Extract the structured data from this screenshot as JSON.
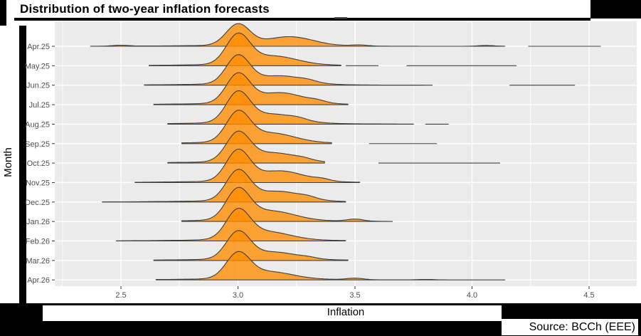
{
  "header": {
    "title": "Distribution of two-year inflation forecasts"
  },
  "footer": {
    "xlabel": "Inflation",
    "source": "Source: BCCh (EEE)"
  },
  "chart_data": {
    "type": "ridgeline-density",
    "title": "Distribution of two-year inflation forecasts",
    "xlabel": "Inflation",
    "ylabel": "Month",
    "xlim": [
      2.22,
      4.7
    ],
    "grid": "on",
    "x_ticks": [
      2.5,
      3.0,
      3.5,
      4.0,
      4.5
    ],
    "x_tick_labels": [
      "2.5",
      "3.0",
      "3.5",
      "4.0",
      "4.5"
    ],
    "x_minor_ticks": [
      2.25,
      2.75,
      3.25,
      3.75,
      4.25
    ],
    "categories": [
      "Apr.25",
      "May.25",
      "Jun.25",
      "Jul.25",
      "Aug.25",
      "Sep.25",
      "Oct.25",
      "Nov.25",
      "Dec.25",
      "Jan.26",
      "Feb.26",
      "Mar.26",
      "Apr.26"
    ],
    "peak_value": 3.0,
    "series": [
      {
        "label": "Apr.25",
        "range": [
          2.37,
          4.14
        ],
        "height": 32,
        "shoulder": [
          3.22,
          0.42
        ],
        "bumps": [
          [
            2.5,
            0.045
          ],
          [
            3.52,
            0.05
          ],
          [
            4.06,
            0.04
          ]
        ],
        "detached": [
          [
            4.24,
            4.55
          ]
        ]
      },
      {
        "label": "May.25",
        "range": [
          2.62,
          3.44
        ],
        "height": 46,
        "shoulder": [
          3.15,
          0.3
        ],
        "bumps": [],
        "detached": [
          [
            3.46,
            3.6
          ],
          [
            3.72,
            4.19
          ]
        ]
      },
      {
        "label": "Jun.25",
        "range": [
          2.6,
          3.83
        ],
        "height": 43,
        "shoulder": [
          3.18,
          0.3
        ],
        "bumps": [
          [
            3.3,
            0.05
          ]
        ],
        "detached": [
          [
            4.16,
            4.44
          ]
        ]
      },
      {
        "label": "Jul.25",
        "range": [
          2.64,
          3.47
        ],
        "height": 45,
        "shoulder": [
          3.18,
          0.38
        ],
        "bumps": [
          [
            3.34,
            0.06
          ]
        ],
        "detached": []
      },
      {
        "label": "Aug.25",
        "range": [
          2.7,
          3.75
        ],
        "height": 47,
        "shoulder": [
          3.15,
          0.3
        ],
        "bumps": [
          [
            3.26,
            0.05
          ]
        ],
        "detached": [
          [
            3.8,
            3.9
          ]
        ]
      },
      {
        "label": "Sep.25",
        "range": [
          2.76,
          3.4
        ],
        "height": 47,
        "shoulder": [
          3.14,
          0.33
        ],
        "bumps": [],
        "detached": [
          [
            3.56,
            3.85
          ]
        ]
      },
      {
        "label": "Oct.25",
        "range": [
          2.7,
          3.37
        ],
        "height": 45,
        "shoulder": [
          3.15,
          0.33
        ],
        "bumps": [
          [
            3.28,
            0.05
          ]
        ],
        "detached": [
          [
            3.6,
            4.12
          ]
        ]
      },
      {
        "label": "Nov.25",
        "range": [
          2.56,
          3.52
        ],
        "height": 47,
        "shoulder": [
          3.18,
          0.35
        ],
        "bumps": [
          [
            3.36,
            0.06
          ]
        ],
        "detached": []
      },
      {
        "label": "Dec.25",
        "range": [
          2.42,
          3.46
        ],
        "height": 46,
        "shoulder": [
          3.17,
          0.33
        ],
        "bumps": [
          [
            3.3,
            0.06
          ]
        ],
        "detached": []
      },
      {
        "label": "Jan.26",
        "range": [
          2.76,
          3.66
        ],
        "height": 48,
        "shoulder": [
          3.14,
          0.32
        ],
        "bumps": [
          [
            3.5,
            0.07
          ]
        ],
        "detached": []
      },
      {
        "label": "Feb.26",
        "range": [
          2.48,
          3.46
        ],
        "height": 46,
        "shoulder": [
          3.12,
          0.3
        ],
        "bumps": [],
        "detached": []
      },
      {
        "label": "Mar.26",
        "range": [
          2.64,
          3.47
        ],
        "height": 42,
        "shoulder": [
          3.15,
          0.28
        ],
        "bumps": [
          [
            3.3,
            0.04
          ]
        ],
        "detached": []
      },
      {
        "label": "Apr.26",
        "range": [
          2.65,
          4.14
        ],
        "height": 40,
        "shoulder": [
          3.13,
          0.3
        ],
        "bumps": [
          [
            3.5,
            0.06
          ],
          [
            3.8,
            0.02
          ]
        ],
        "detached": []
      }
    ],
    "style": {
      "panel_bg": "#EBEBEB",
      "grid_color": "#FFFFFF",
      "fill": "#FF8C00",
      "fill_alpha": 0.78,
      "stroke": "#3F3F3F",
      "label_color": "#4D4D4D",
      "tick_color": "#333333",
      "frame_color": "#000000"
    }
  }
}
